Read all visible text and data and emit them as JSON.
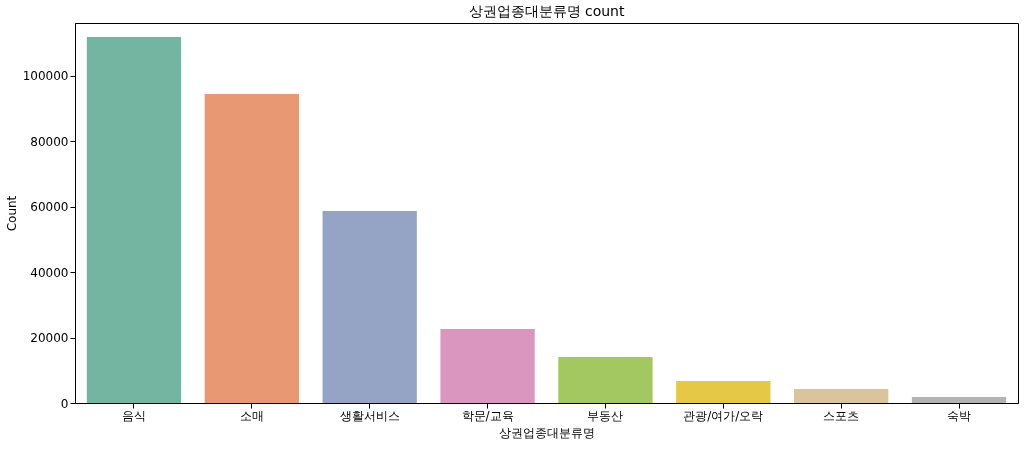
{
  "chart_data": {
    "type": "bar",
    "title": "상권업종대분류명 count",
    "xlabel": "상권업종대분류명",
    "ylabel": "Count",
    "categories": [
      "음식",
      "소매",
      "생활서비스",
      "학문/교육",
      "부동산",
      "관광/여가/오락",
      "스포츠",
      "숙박"
    ],
    "values": [
      111900,
      94500,
      58700,
      22600,
      14100,
      6700,
      4300,
      1800
    ],
    "colors": [
      "#73b5a1",
      "#e99874",
      "#95a4c4",
      "#db96c0",
      "#a3c862",
      "#e4c846",
      "#dbc49b",
      "#b3b3b3"
    ],
    "ylim": [
      0,
      116200
    ],
    "yticks": [
      0,
      20000,
      40000,
      60000,
      80000,
      100000
    ],
    "grid": false,
    "legend": false
  }
}
